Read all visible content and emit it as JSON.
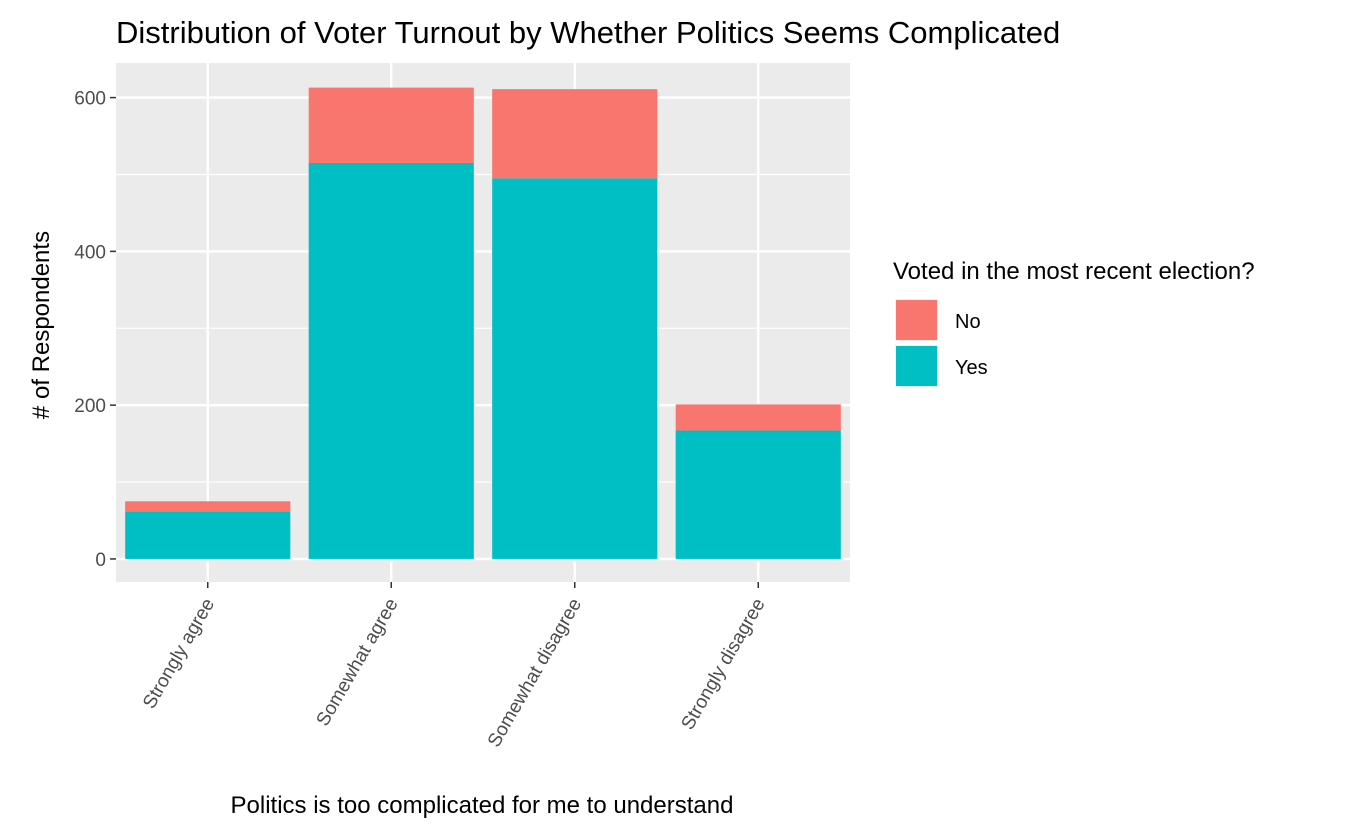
{
  "chart_data": {
    "type": "bar",
    "stacked": true,
    "title": "Distribution of Voter Turnout by Whether Politics Seems Complicated",
    "xlabel": "Politics is too complicated for me to understand",
    "ylabel": "# of Respondents",
    "categories": [
      "Strongly agree",
      "Somewhat agree",
      "Somewhat disagree",
      "Strongly disagree"
    ],
    "series": [
      {
        "name": "Yes",
        "color": "#00BFC4",
        "values": [
          62,
          515,
          495,
          167
        ]
      },
      {
        "name": "No",
        "color": "#F8766D",
        "values": [
          13,
          98,
          116,
          34
        ]
      }
    ],
    "ylim": [
      -30,
      645
    ],
    "yticks": [
      0,
      200,
      400,
      600
    ],
    "grid": true,
    "legend": {
      "title": "Voted in the most recent election?",
      "position": "right",
      "entries": [
        {
          "label": "No",
          "color": "#F8766D"
        },
        {
          "label": "Yes",
          "color": "#00BFC4"
        }
      ]
    }
  }
}
